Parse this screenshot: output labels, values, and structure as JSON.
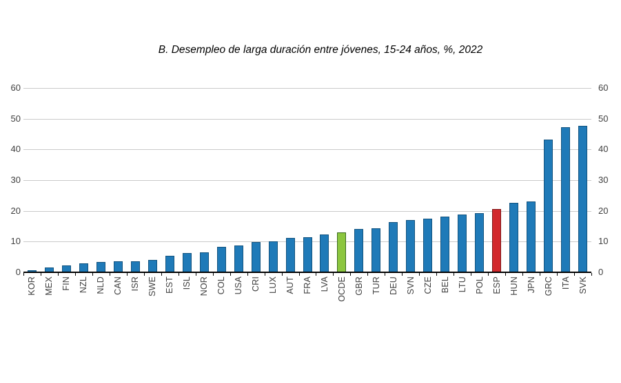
{
  "chart_data": {
    "type": "bar",
    "title": "B. Desempleo de larga duración entre jóvenes, 15-24 años, %, 2022",
    "categories": [
      "KOR",
      "MEX",
      "FIN",
      "NZL",
      "NLD",
      "CAN",
      "ISR",
      "SWE",
      "EST",
      "ISL",
      "NOR",
      "COL",
      "USA",
      "CRI",
      "LUX",
      "AUT",
      "FRA",
      "LVA",
      "OCDE",
      "GBR",
      "TUR",
      "DEU",
      "SVN",
      "CZE",
      "BEL",
      "LTU",
      "POL",
      "ESP",
      "HUN",
      "JPN",
      "GRC",
      "ITA",
      "SVK"
    ],
    "values": [
      0.7,
      1.5,
      2.3,
      3.0,
      3.4,
      3.5,
      3.6,
      4.0,
      5.3,
      6.2,
      6.5,
      8.3,
      8.8,
      9.9,
      10.0,
      11.1,
      11.4,
      12.4,
      13.0,
      14.1,
      14.4,
      16.3,
      17.1,
      17.5,
      18.2,
      18.8,
      19.2,
      20.6,
      22.5,
      23.0,
      43.3,
      47.3,
      47.7
    ],
    "default_bar_color_key": "blue",
    "highlighted_bars": {
      "OCDE": "green",
      "ESP": "red"
    },
    "ylim": [
      0,
      60
    ],
    "yticks": [
      0,
      10,
      20,
      30,
      40,
      50,
      60
    ],
    "grid": true,
    "axis_label_sides": [
      "left",
      "right"
    ],
    "xlabel": "",
    "ylabel": ""
  },
  "colors": {
    "blue": {
      "fill": "#1F7AB8",
      "border": "#12537F"
    },
    "green": {
      "fill": "#8CC63F",
      "border": "#3A6B1C"
    },
    "red": {
      "fill": "#D2292D",
      "border": "#7C1416"
    },
    "gridline": "#C9C9C9",
    "axis": "#000000",
    "tick_label_color": "#404040"
  }
}
